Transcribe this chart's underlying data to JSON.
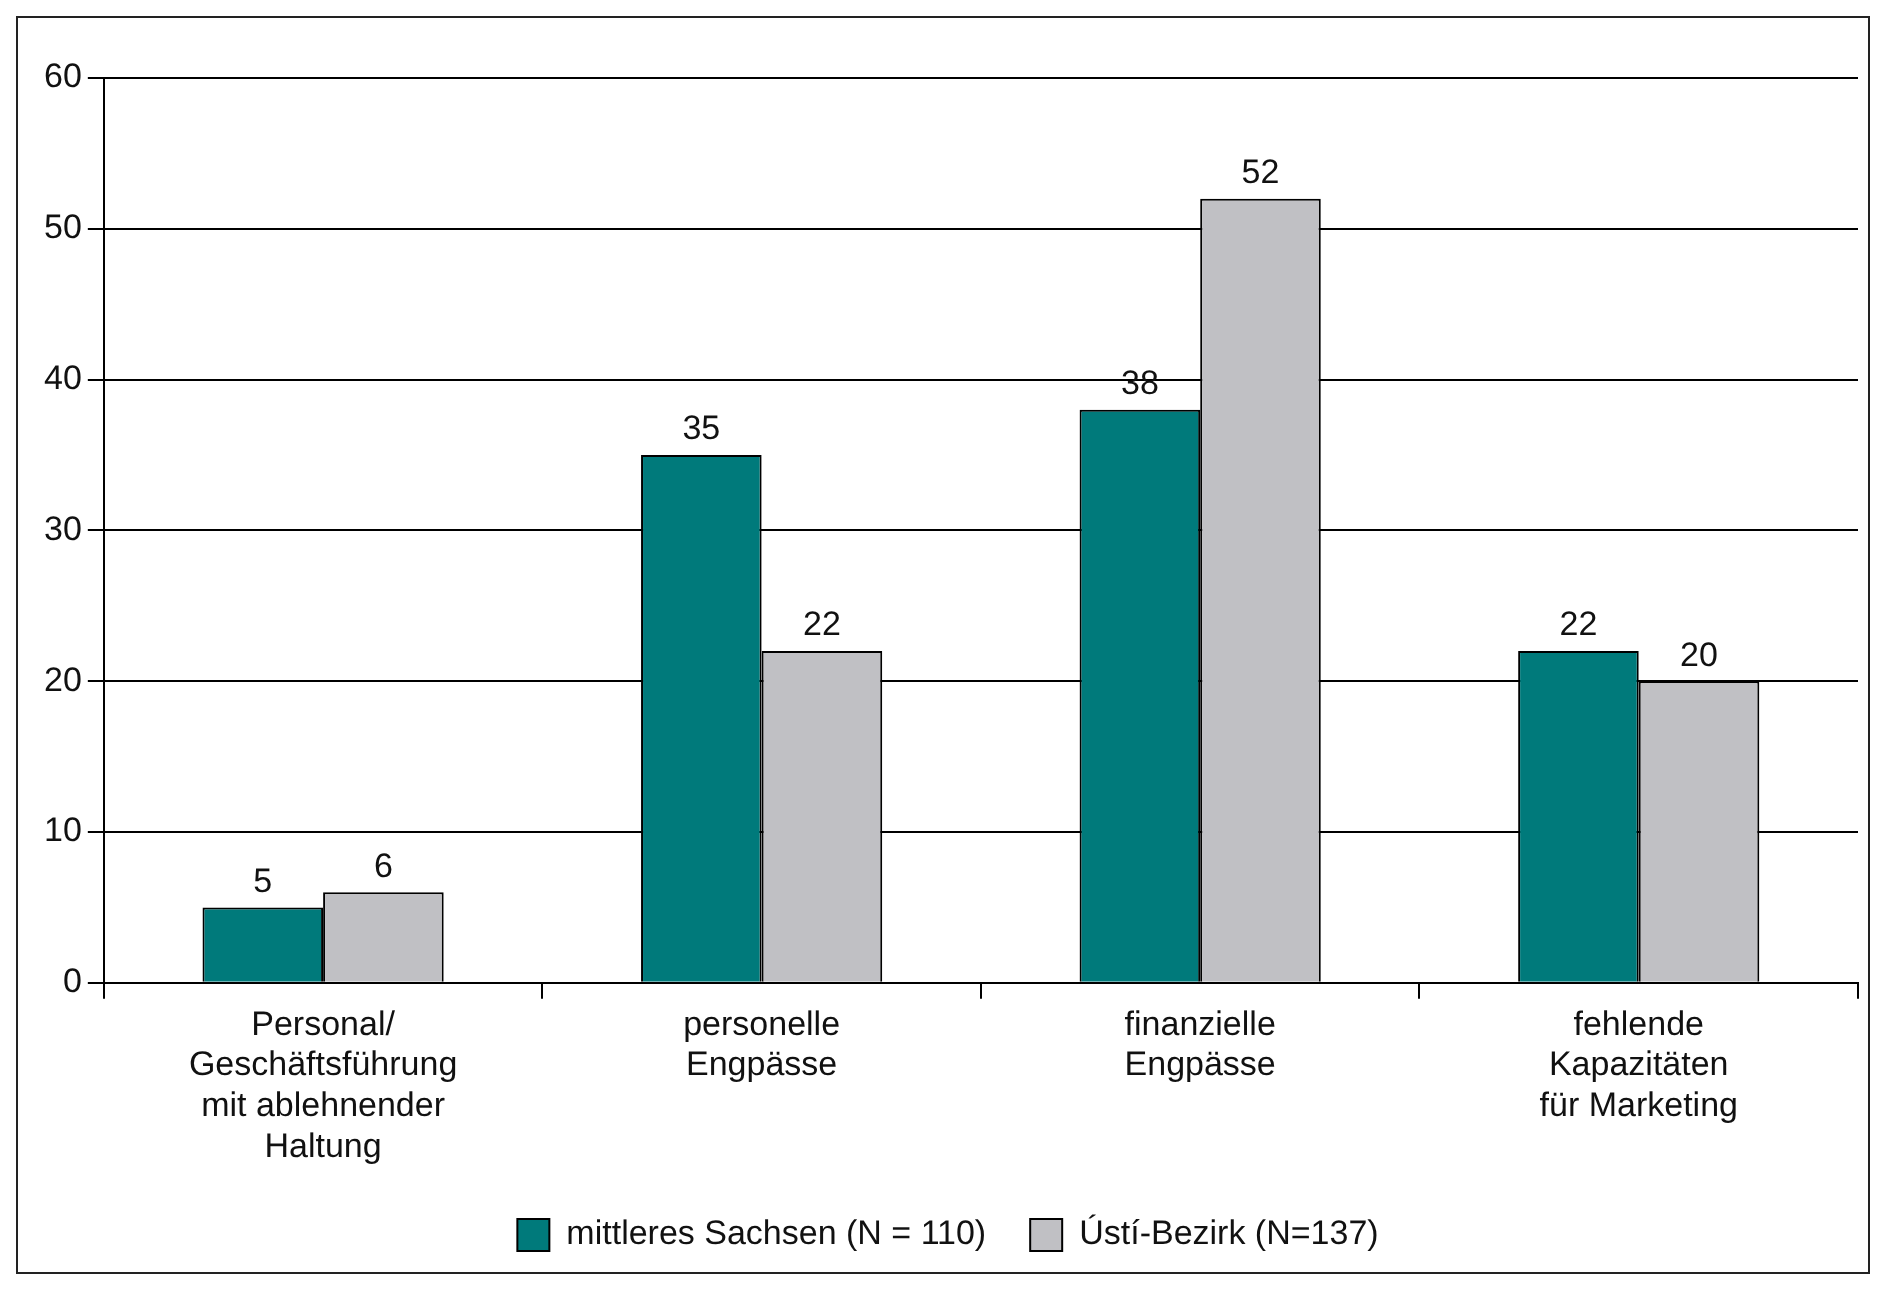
{
  "chart_data": {
    "type": "bar",
    "categories": [
      "Personal/\nGeschäftsführung\nmit ablehnender\nHaltung",
      "personelle\nEngpässe",
      "finanzielle\nEngpässe",
      "fehlende\nKapazitäten\nfür Marketing"
    ],
    "series": [
      {
        "name": "mittleres Sachsen (N = 110)",
        "color": "#007a7b",
        "values": [
          5,
          35,
          38,
          22
        ]
      },
      {
        "name": "Ústí-Bezirk (N=137)",
        "color": "#c0c0c4",
        "values": [
          6,
          22,
          52,
          20
        ]
      }
    ],
    "ylim": [
      0,
      60
    ],
    "yticks": [
      0,
      10,
      20,
      30,
      40,
      50,
      60
    ],
    "grid": "y",
    "legend": "bottom",
    "data_labels": true
  }
}
